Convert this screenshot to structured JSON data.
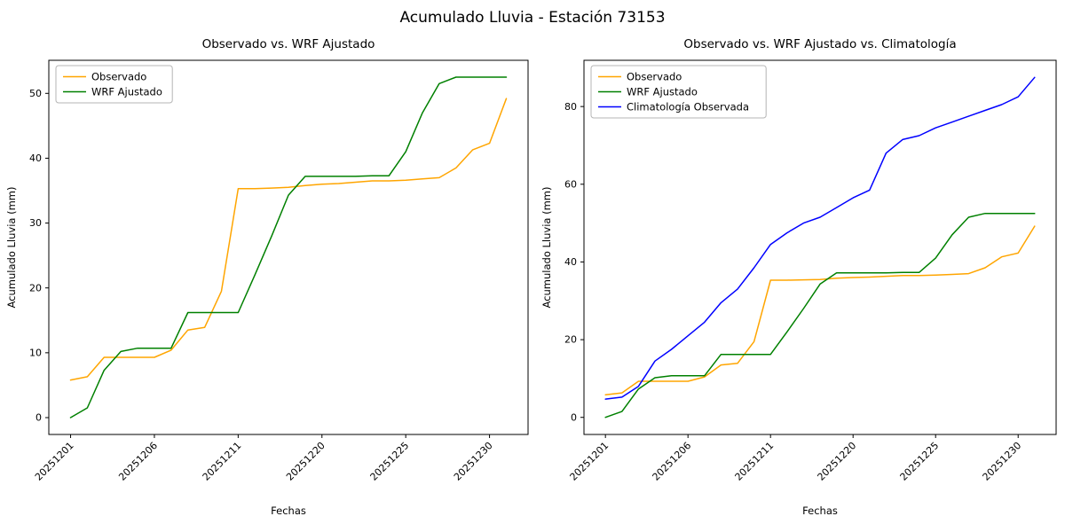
{
  "figure_title": "Acumulado Lluvia - Estación 73153",
  "chart_data": [
    {
      "type": "line",
      "title": "Observado vs. WRF Ajustado",
      "xlabel": "Fechas",
      "ylabel": "Acumulado Lluvia (mm)",
      "x_tick_indices": [
        0,
        5,
        10,
        15,
        20,
        25
      ],
      "x_tick_labels": [
        "20251201",
        "20251206",
        "20251211",
        "20251220",
        "20251225",
        "20251230"
      ],
      "y_ticks": [
        0,
        10,
        20,
        30,
        40,
        50
      ],
      "ylim": [
        -2.6,
        55.1
      ],
      "grid": false,
      "legend_position": "upper-left",
      "series": [
        {
          "name": "Observado",
          "color": "#FFA500",
          "values": [
            5.8,
            6.3,
            9.3,
            9.3,
            9.3,
            9.3,
            10.4,
            13.5,
            13.9,
            19.5,
            35.3,
            35.3,
            35.4,
            35.5,
            35.8,
            36.0,
            36.1,
            36.3,
            36.5,
            36.5,
            36.6,
            36.8,
            37.0,
            38.5,
            41.3,
            42.3,
            49.2
          ]
        },
        {
          "name": "WRF Ajustado",
          "color": "#008000",
          "values": [
            0.0,
            1.5,
            7.3,
            10.2,
            10.7,
            10.7,
            10.7,
            16.2,
            16.2,
            16.2,
            16.2,
            22.0,
            28.0,
            34.3,
            37.2,
            37.2,
            37.2,
            37.2,
            37.3,
            37.3,
            41.0,
            47.0,
            51.5,
            52.5,
            52.5,
            52.5,
            52.5
          ]
        }
      ]
    },
    {
      "type": "line",
      "title": "Observado vs. WRF Ajustado vs. Climatología",
      "xlabel": "Fechas",
      "ylabel": "Acumulado Lluvia (mm)",
      "x_tick_indices": [
        0,
        5,
        10,
        15,
        20,
        25
      ],
      "x_tick_labels": [
        "20251201",
        "20251206",
        "20251211",
        "20251220",
        "20251225",
        "20251230"
      ],
      "y_ticks": [
        0,
        20,
        40,
        60,
        80
      ],
      "ylim": [
        -4.4,
        91.9
      ],
      "grid": false,
      "legend_position": "upper-left",
      "series": [
        {
          "name": "Observado",
          "color": "#FFA500",
          "values": [
            5.8,
            6.3,
            9.3,
            9.3,
            9.3,
            9.3,
            10.4,
            13.5,
            13.9,
            19.5,
            35.3,
            35.3,
            35.4,
            35.5,
            35.8,
            36.0,
            36.1,
            36.3,
            36.5,
            36.5,
            36.6,
            36.8,
            37.0,
            38.5,
            41.3,
            42.3,
            49.2
          ]
        },
        {
          "name": "WRF Ajustado",
          "color": "#008000",
          "values": [
            0.0,
            1.5,
            7.3,
            10.2,
            10.7,
            10.7,
            10.7,
            16.2,
            16.2,
            16.2,
            16.2,
            22.0,
            28.0,
            34.3,
            37.2,
            37.2,
            37.2,
            37.2,
            37.3,
            37.3,
            41.0,
            47.0,
            51.5,
            52.5,
            52.5,
            52.5,
            52.5
          ]
        },
        {
          "name": "Climatología Observada",
          "color": "#0000FF",
          "values": [
            4.7,
            5.2,
            8.0,
            14.5,
            17.5,
            21.0,
            24.5,
            29.5,
            33.0,
            38.5,
            44.5,
            47.5,
            50.0,
            51.5,
            54.0,
            56.5,
            58.5,
            68.0,
            71.5,
            72.5,
            74.5,
            76.0,
            77.5,
            79.0,
            80.5,
            82.5,
            87.5
          ]
        }
      ]
    }
  ]
}
